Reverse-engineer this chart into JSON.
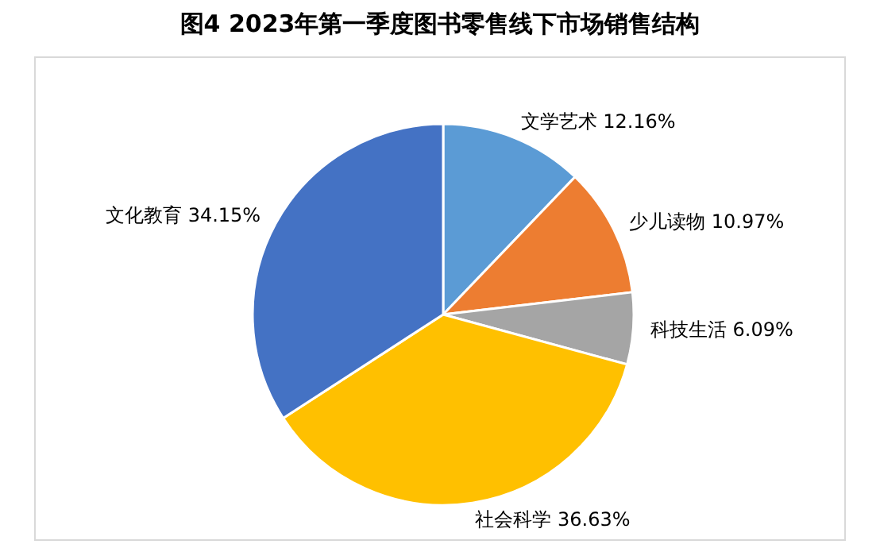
{
  "chart_data": {
    "type": "pie",
    "title": "图4  2023年第一季度图书零售线下市场销售结构",
    "categories": [
      "文学艺术",
      "少儿读物",
      "科技生活",
      "社会科学",
      "文化教育"
    ],
    "values": [
      12.16,
      10.97,
      6.09,
      36.63,
      34.15
    ],
    "value_labels": [
      "12.16%",
      "10.97%",
      "6.09%",
      "36.63%",
      "34.15%"
    ],
    "colors": [
      "#5b9bd5",
      "#ed7d31",
      "#a5a5a5",
      "#ffc000",
      "#4472c4"
    ]
  }
}
